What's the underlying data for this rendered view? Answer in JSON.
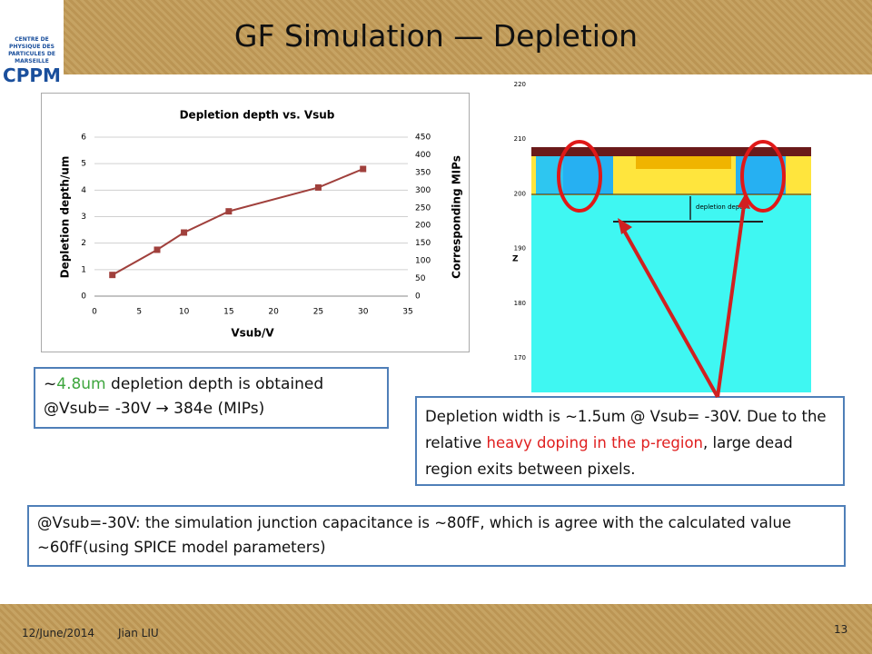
{
  "slide": {
    "title": "GF Simulation — Depletion",
    "logo": {
      "org": "CENTRE DE PHYSIQUE DES PARTICULES DE MARSEILLE",
      "acronym": "CPPM"
    },
    "footer": {
      "date": "12/June/2014",
      "author": "Jian LIU",
      "page": "13"
    },
    "box1": [
      "~",
      "4.8um",
      " depletion depth is obtained @Vsub= -30V ",
      "→",
      " 384e (MIPs)"
    ],
    "box2": [
      "Depletion width is ~1.5um @ Vsub= -30V. Due to the relative ",
      "heavy doping in the p-region",
      ", large dead region exits between pixels."
    ],
    "box3": "@Vsub=-30V: the simulation junction capacitance is ~80fF, which is agree with the calculated value ~60fF(using SPICE model parameters)",
    "simulation": {
      "axis_label": "Z",
      "annotation": "depletion depth",
      "zticks": [
        220,
        210,
        200,
        190,
        180,
        170
      ]
    }
  },
  "chart_data": {
    "type": "line",
    "title": "Depletion depth vs. Vsub",
    "xlabel": "Vsub/V",
    "ylabel": "Depletion depth/um",
    "y2label": "Corresponding MIPs",
    "x": [
      2,
      7,
      10,
      15,
      25,
      30
    ],
    "series": [
      {
        "color": "#a0403c",
        "values": [
          0.8,
          1.75,
          2.4,
          3.2,
          4.1,
          4.8
        ]
      }
    ],
    "xlim": [
      0,
      35
    ],
    "xticks": [
      0,
      5,
      10,
      15,
      20,
      25,
      30,
      35
    ],
    "ylim": [
      0,
      6
    ],
    "yticks": [
      0,
      1,
      2,
      3,
      4,
      5,
      6
    ],
    "y2lim": [
      0,
      450
    ],
    "y2ticks": [
      0,
      50,
      100,
      150,
      200,
      250,
      300,
      350,
      400,
      450
    ],
    "grid": true
  }
}
